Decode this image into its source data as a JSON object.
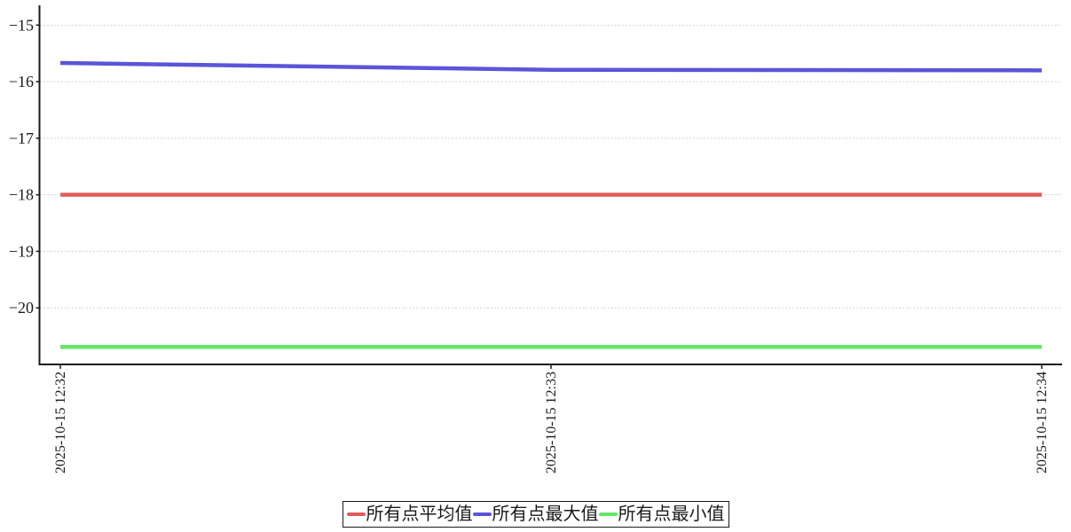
{
  "chart_data": {
    "type": "line",
    "title": "",
    "xlabel": "",
    "ylabel": "",
    "x": [
      "2025-10-15 12:32",
      "2025-10-15 12:33",
      "2025-10-15 12:34"
    ],
    "series": [
      {
        "id": "average",
        "name": "所有点平均值",
        "color": "#e05c5c",
        "values": [
          -18.0,
          -18.0,
          -18.0
        ]
      },
      {
        "id": "max",
        "name": "所有点最大值",
        "color": "#5a55d8",
        "values": [
          -15.67,
          -15.79,
          -15.8
        ]
      },
      {
        "id": "min",
        "name": "所有点最小值",
        "color": "#64e864",
        "values": [
          -20.69,
          -20.69,
          -20.69
        ]
      }
    ],
    "yticks": [
      -15,
      -16,
      -17,
      -18,
      -19,
      -20
    ],
    "ylim": [
      -21.0,
      -14.65
    ],
    "grid": "horizontal-dotted",
    "legend_position": "bottom-center"
  },
  "style": {
    "axis_color": "#1a1a1a",
    "grid_color": "#a6a6a6",
    "tick_label_color": "#1a1a1a"
  }
}
